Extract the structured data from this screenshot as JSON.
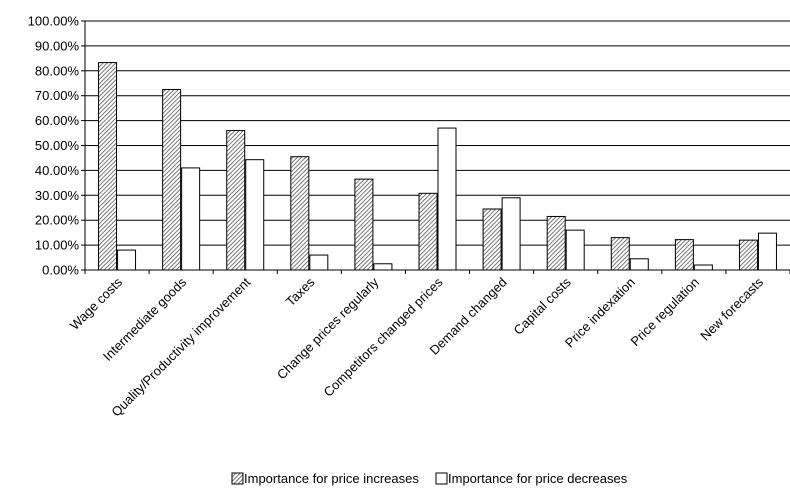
{
  "chart_data": {
    "type": "bar",
    "title": "",
    "xlabel": "",
    "ylabel": "",
    "ylim": [
      0,
      1.0
    ],
    "ytick_labels": [
      "0.00%",
      "10.00%",
      "20.00%",
      "30.00%",
      "40.00%",
      "50.00%",
      "60.00%",
      "70.00%",
      "80.00%",
      "90.00%",
      "100.00%"
    ],
    "grid": "horizontal",
    "legend_position": "bottom",
    "categories": [
      "Wage costs",
      "Intermediate goods",
      "Quality/Productivity improvement",
      "Taxes",
      "Change prices regularly",
      "Competitors changed prices",
      "Demand changed",
      "Capital costs",
      "Price indexation",
      "Price regulation",
      "New forecasts"
    ],
    "series": [
      {
        "name": "Importance for price increases",
        "pattern": "hatched",
        "values": [
          0.833,
          0.725,
          0.56,
          0.455,
          0.365,
          0.308,
          0.245,
          0.215,
          0.13,
          0.122,
          0.12
        ]
      },
      {
        "name": "Importance for price decreases",
        "pattern": "white",
        "values": [
          0.08,
          0.41,
          0.443,
          0.06,
          0.025,
          0.57,
          0.29,
          0.16,
          0.045,
          0.02,
          0.148
        ]
      }
    ]
  },
  "colors": {
    "bar_edge": "#000000",
    "hatch": "#555555",
    "plain_fill": "#ffffff",
    "grid": "#000000"
  }
}
